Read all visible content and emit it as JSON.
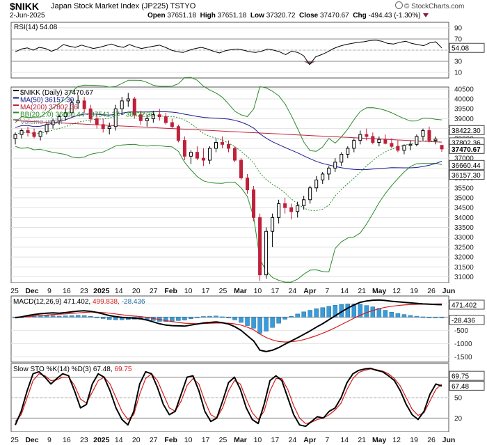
{
  "header": {
    "symbol": "$NIKK",
    "name": "Japan Stock Market Index (JP225)",
    "exchange": "TSTYO",
    "date": "2-Jun-2025",
    "open_label": "Open",
    "open": "37651.18",
    "high_label": "High",
    "high": "37651.18",
    "low_label": "Low",
    "low": "37320.72",
    "close_label": "Close",
    "close": "37470.67",
    "chg_label": "Chg",
    "chg": "-494.43 (-1.30%)",
    "brand": "© StockCharts.com",
    "brand_icon": "stockcharts-logo-icon"
  },
  "chart_data": [
    {
      "type": "line",
      "panel": "rsi",
      "legend": "RSI(14) 54.08",
      "ylim": [
        0,
        100
      ],
      "yticks": [
        10,
        30,
        50,
        70,
        90
      ],
      "ref_lines": [
        30,
        70
      ],
      "last_value": "54.08",
      "colors": {
        "line": "#000000",
        "oversold_fill": "#8b6b70"
      },
      "series": [
        {
          "name": "RSI(14)",
          "values": [
            47,
            52,
            54,
            50,
            55,
            53,
            48,
            52,
            60,
            57,
            55,
            59,
            56,
            53,
            55,
            58,
            61,
            57,
            55,
            60,
            56,
            53,
            55,
            57,
            59,
            55,
            50,
            47,
            46,
            50,
            53,
            55,
            52,
            48,
            45,
            49,
            51,
            52,
            50,
            47,
            46,
            48,
            52,
            50,
            47,
            42,
            48,
            46,
            40,
            24,
            38,
            42,
            47,
            53,
            57,
            60,
            62,
            64,
            65,
            67,
            68,
            66,
            62,
            61,
            64,
            66,
            62,
            60,
            58,
            63,
            65,
            54
          ]
        }
      ]
    },
    {
      "type": "candlestick",
      "panel": "price",
      "ylim": [
        30700,
        40600
      ],
      "yticks": [
        31000,
        31500,
        32000,
        32500,
        33000,
        33500,
        34000,
        34500,
        35000,
        35500,
        36000,
        36500,
        37000,
        37500,
        38000,
        38500,
        39000,
        39500,
        40000,
        40500
      ],
      "legend": [
        {
          "label": "$NIKK (Daily) 37470.67",
          "color": "#000000"
        },
        {
          "label": "MA(50) 36157.30",
          "color": "#1a1a8c"
        },
        {
          "label": "MA(200) 37802.36",
          "color": "#c0203a"
        },
        {
          "label": "BB(20,2.0) 36660.44 - 37541.37 - 38422.30",
          "color": "#2a8a2a"
        },
        {
          "label": "Volume undef",
          "color": "#888888"
        }
      ],
      "price_tags": [
        {
          "label": "38422.30",
          "value": 38422.3,
          "style": "outline"
        },
        {
          "label": "37802.36",
          "value": 37802.36,
          "style": "outline"
        },
        {
          "label": "37470.67",
          "value": 37470.67,
          "style": "bold"
        },
        {
          "label": "36660.44",
          "value": 36660.44,
          "style": "outline"
        },
        {
          "label": "36157.30",
          "value": 36157.3,
          "style": "outline"
        }
      ],
      "colors": {
        "up": "#000000",
        "down": "#c0203a",
        "bb": "#2a8a2a",
        "ma50": "#1a1a8c",
        "ma200": "#c0203a"
      },
      "candles": [
        [
          38000,
          38300,
          37700,
          38200
        ],
        [
          38200,
          38500,
          38000,
          38400
        ],
        [
          38400,
          38600,
          38100,
          38300
        ],
        [
          38300,
          38500,
          38000,
          38100
        ],
        [
          38100,
          38400,
          37900,
          38350
        ],
        [
          38350,
          38800,
          38200,
          38700
        ],
        [
          38700,
          39000,
          38500,
          38900
        ],
        [
          38900,
          39200,
          38700,
          39100
        ],
        [
          39100,
          39500,
          38900,
          39300
        ],
        [
          39300,
          40000,
          39100,
          39800
        ],
        [
          39800,
          40200,
          39500,
          39900
        ],
        [
          39900,
          40100,
          39300,
          39500
        ],
        [
          39500,
          39700,
          38800,
          39000
        ],
        [
          39000,
          39300,
          38500,
          38700
        ],
        [
          38700,
          39000,
          38300,
          38500
        ],
        [
          38500,
          38800,
          38200,
          38600
        ],
        [
          38600,
          39700,
          38400,
          39500
        ],
        [
          39500,
          40100,
          39200,
          39900
        ],
        [
          39900,
          40300,
          39600,
          40000
        ],
        [
          40000,
          40100,
          39000,
          39200
        ],
        [
          39200,
          39400,
          38700,
          38900
        ],
        [
          38900,
          39200,
          38600,
          39000
        ],
        [
          39000,
          39400,
          38800,
          39200
        ],
        [
          39200,
          39500,
          38900,
          39100
        ],
        [
          39100,
          39300,
          38700,
          38800
        ],
        [
          38800,
          39000,
          38500,
          38600
        ],
        [
          38600,
          38700,
          37800,
          37900
        ],
        [
          37900,
          38100,
          36900,
          37100
        ],
        [
          37100,
          37400,
          36700,
          37300
        ],
        [
          37300,
          37600,
          36900,
          37000
        ],
        [
          37000,
          37500,
          36600,
          36900
        ],
        [
          36900,
          37600,
          36700,
          37500
        ],
        [
          37500,
          38000,
          37300,
          37800
        ],
        [
          37800,
          38100,
          37500,
          37700
        ],
        [
          37700,
          37900,
          37300,
          37500
        ],
        [
          37500,
          37600,
          36800,
          36900
        ],
        [
          36900,
          37000,
          35900,
          36000
        ],
        [
          36000,
          36200,
          35200,
          35400
        ],
        [
          35400,
          35600,
          33800,
          34000
        ],
        [
          34000,
          34200,
          30800,
          31100
        ],
        [
          31100,
          33500,
          30900,
          33300
        ],
        [
          33300,
          34200,
          32500,
          34000
        ],
        [
          34000,
          34900,
          33700,
          34700
        ],
        [
          34700,
          35000,
          34200,
          34500
        ],
        [
          34500,
          34700,
          33900,
          34300
        ],
        [
          34300,
          34800,
          34000,
          34600
        ],
        [
          34600,
          35100,
          34400,
          34900
        ],
        [
          34900,
          35600,
          34700,
          35500
        ],
        [
          35500,
          36100,
          35300,
          35900
        ],
        [
          35900,
          36300,
          35700,
          36200
        ],
        [
          36200,
          36600,
          35900,
          36500
        ],
        [
          36500,
          37000,
          36300,
          36800
        ],
        [
          36800,
          37300,
          36600,
          37200
        ],
        [
          37200,
          37600,
          37000,
          37500
        ],
        [
          37500,
          38000,
          37300,
          37900
        ],
        [
          37900,
          38400,
          37700,
          38200
        ],
        [
          38200,
          38500,
          37900,
          38100
        ],
        [
          38100,
          38300,
          37700,
          37800
        ],
        [
          37800,
          38100,
          37600,
          37950
        ],
        [
          37950,
          38200,
          37700,
          37750
        ],
        [
          37750,
          38000,
          37500,
          37600
        ],
        [
          37600,
          37900,
          37300,
          37400
        ],
        [
          37400,
          37700,
          37200,
          37650
        ],
        [
          37650,
          37900,
          37400,
          37700
        ],
        [
          37700,
          38200,
          37600,
          38100
        ],
        [
          38100,
          38500,
          37900,
          38400
        ],
        [
          38400,
          38600,
          37800,
          37900
        ],
        [
          37900,
          38100,
          37700,
          37965
        ],
        [
          37651,
          37651,
          37320,
          37470
        ]
      ]
    },
    {
      "type": "line",
      "panel": "macd",
      "legend_name": "MACD(12,26,9)",
      "legend_values": [
        "471.402",
        "499.838",
        "-28.436"
      ],
      "ylim": [
        -1700,
        800
      ],
      "yticks": [
        -1500,
        -1000,
        -500,
        0,
        500
      ],
      "tags": [
        "471.402",
        "-28.436"
      ],
      "colors": {
        "macd": "#000000",
        "signal": "#d41c1c",
        "hist": "#3a9bd8"
      },
      "series": [
        {
          "name": "MACD",
          "values": [
            -20,
            10,
            60,
            100,
            130,
            150,
            160,
            150,
            170,
            200,
            230,
            240,
            220,
            180,
            120,
            60,
            20,
            -10,
            -30,
            -40,
            -60,
            -110,
            -180,
            -250,
            -300,
            -320,
            -330,
            -340,
            -300,
            -260,
            -220,
            -200,
            -180,
            -210,
            -260,
            -360,
            -500,
            -700,
            -900,
            -1250,
            -1300,
            -1250,
            -1150,
            -1020,
            -900,
            -780,
            -650,
            -520,
            -380,
            -250,
            -100,
            50,
            200,
            340,
            460,
            560,
            610,
            640,
            650,
            630,
            600,
            580,
            560,
            540,
            520,
            500,
            490,
            480,
            471
          ]
        },
        {
          "name": "Signal",
          "values": [
            0,
            5,
            20,
            40,
            60,
            80,
            100,
            110,
            120,
            140,
            160,
            180,
            190,
            190,
            175,
            150,
            120,
            90,
            60,
            40,
            20,
            -10,
            -50,
            -90,
            -130,
            -170,
            -200,
            -230,
            -240,
            -250,
            -245,
            -235,
            -225,
            -222,
            -228,
            -255,
            -300,
            -380,
            -480,
            -640,
            -770,
            -860,
            -920,
            -940,
            -930,
            -900,
            -850,
            -780,
            -700,
            -610,
            -510,
            -400,
            -280,
            -160,
            -40,
            70,
            170,
            250,
            320,
            370,
            410,
            440,
            460,
            475,
            485,
            490,
            495,
            497,
            500
          ]
        }
      ]
    },
    {
      "type": "line",
      "panel": "stochastic",
      "legend_name": "Slow STO %K(14) %D(3)",
      "legend_k": "67.48",
      "legend_d": "69.75",
      "ylim": [
        0,
        100
      ],
      "yticks": [
        20,
        50,
        80
      ],
      "ref_lines": [
        20,
        50,
        80
      ],
      "tags": [
        "67.48",
        "69.75"
      ],
      "colors": {
        "k": "#000000",
        "d": "#d41c1c"
      },
      "series": [
        {
          "name": "%K",
          "values": [
            10,
            30,
            60,
            85,
            88,
            80,
            70,
            78,
            85,
            82,
            60,
            35,
            40,
            70,
            85,
            80,
            60,
            35,
            18,
            10,
            30,
            70,
            88,
            85,
            65,
            40,
            25,
            30,
            55,
            80,
            82,
            60,
            30,
            15,
            20,
            45,
            72,
            80,
            62,
            35,
            18,
            12,
            40,
            75,
            82,
            75,
            50,
            25,
            10,
            8,
            15,
            22,
            20,
            30,
            35,
            50,
            72,
            85,
            90,
            92,
            93,
            90,
            88,
            82,
            75,
            60,
            40,
            25,
            18,
            30,
            55,
            70,
            67
          ]
        },
        {
          "name": "%D",
          "values": [
            15,
            25,
            50,
            75,
            85,
            82,
            75,
            76,
            80,
            80,
            68,
            48,
            42,
            58,
            75,
            80,
            70,
            50,
            30,
            18,
            25,
            55,
            78,
            85,
            75,
            55,
            35,
            30,
            45,
            68,
            78,
            70,
            45,
            25,
            20,
            35,
            60,
            75,
            70,
            48,
            28,
            18,
            30,
            60,
            78,
            78,
            62,
            38,
            20,
            12,
            14,
            18,
            20,
            25,
            32,
            42,
            62,
            78,
            87,
            90,
            92,
            91,
            89,
            85,
            78,
            67,
            50,
            33,
            24,
            28,
            45,
            62,
            70
          ]
        }
      ]
    }
  ],
  "xaxis": {
    "labels": [
      "25",
      "Dec",
      "9",
      "16",
      "23",
      "2025",
      "14",
      "20",
      "27",
      "Feb",
      "10",
      "17",
      "25",
      "Mar",
      "10",
      "17",
      "24",
      "Apr",
      "7",
      "14",
      "21",
      "May",
      "12",
      "19",
      "26",
      "Jun"
    ],
    "bold": [
      "Dec",
      "2025",
      "Feb",
      "Mar",
      "Apr",
      "May",
      "Jun"
    ]
  }
}
